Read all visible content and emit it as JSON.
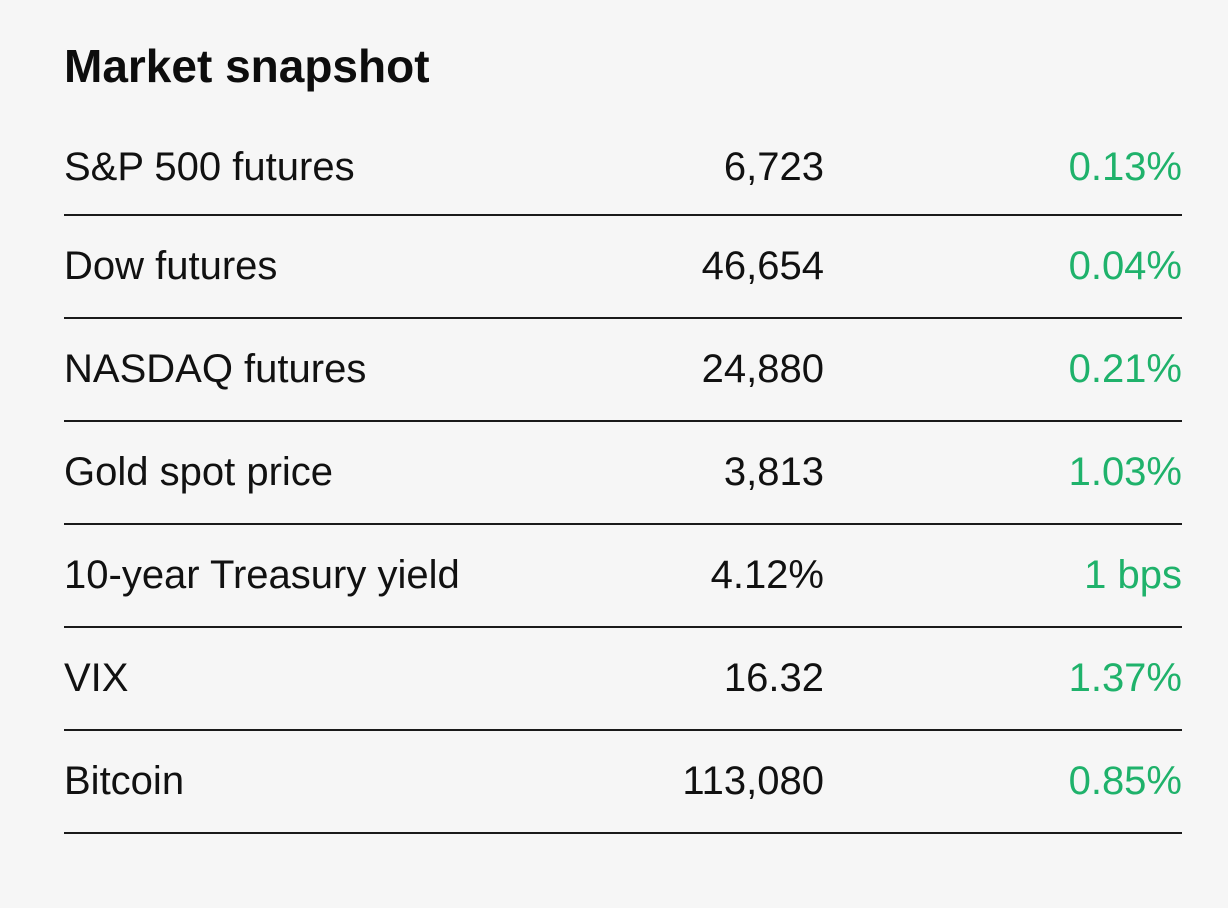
{
  "title": "Market snapshot",
  "colors": {
    "background": "#f6f6f6",
    "text": "#111111",
    "positive": "#1fb26b",
    "divider": "#1a1a1a"
  },
  "rows": [
    {
      "name": "S&P 500 futures",
      "value": "6,723",
      "change": "0.13%"
    },
    {
      "name": "Dow futures",
      "value": "46,654",
      "change": "0.04%"
    },
    {
      "name": "NASDAQ futures",
      "value": "24,880",
      "change": "0.21%"
    },
    {
      "name": "Gold spot price",
      "value": "3,813",
      "change": "1.03%"
    },
    {
      "name": "10-year Treasury yield",
      "value": "4.12%",
      "change": "1 bps"
    },
    {
      "name": "VIX",
      "value": "16.32",
      "change": "1.37%"
    },
    {
      "name": "Bitcoin",
      "value": "113,080",
      "change": "0.85%"
    }
  ]
}
